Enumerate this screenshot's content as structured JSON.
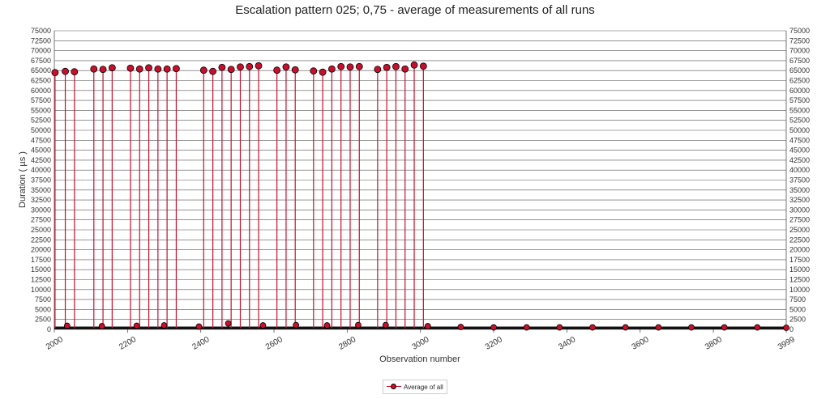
{
  "chart_data": {
    "type": "line",
    "title": "Escalation pattern 025; 0,75 - average of measurements of all runs",
    "xlabel": "Observation number",
    "ylabel": "Duration ( µs )",
    "xlim": [
      2000,
      3999
    ],
    "ylim": [
      0,
      75000
    ],
    "x_ticks": [
      2000,
      2200,
      2400,
      2600,
      2800,
      3000,
      3200,
      3400,
      3600,
      3800,
      3999
    ],
    "y_ticks": [
      0,
      2500,
      5000,
      7500,
      10000,
      12500,
      15000,
      17500,
      20000,
      22500,
      25000,
      27500,
      30000,
      32500,
      35000,
      37500,
      40000,
      42500,
      45000,
      47500,
      50000,
      52500,
      55000,
      57500,
      60000,
      62500,
      65000,
      67500,
      70000,
      72500,
      75000
    ],
    "grid": true,
    "legend_position": "bottom-center",
    "colors": {
      "series": "#c8102e",
      "marker_edge": "#000000",
      "grid": "#555555"
    },
    "baseline_value": 300,
    "series": [
      {
        "name": "Average of all",
        "spikes": [
          [
            2002,
            64500
          ],
          [
            2030,
            64800
          ],
          [
            2055,
            64700
          ],
          [
            2108,
            65400
          ],
          [
            2133,
            65300
          ],
          [
            2158,
            65700
          ],
          [
            2208,
            65600
          ],
          [
            2233,
            65400
          ],
          [
            2258,
            65700
          ],
          [
            2283,
            65400
          ],
          [
            2308,
            65400
          ],
          [
            2333,
            65500
          ],
          [
            2408,
            65100
          ],
          [
            2433,
            64800
          ],
          [
            2458,
            65800
          ],
          [
            2483,
            65300
          ],
          [
            2508,
            65900
          ],
          [
            2533,
            66000
          ],
          [
            2558,
            66200
          ],
          [
            2608,
            65100
          ],
          [
            2633,
            65900
          ],
          [
            2658,
            65200
          ],
          [
            2708,
            64900
          ],
          [
            2733,
            64600
          ],
          [
            2758,
            65400
          ],
          [
            2783,
            66000
          ],
          [
            2808,
            65900
          ],
          [
            2833,
            66000
          ],
          [
            2883,
            65300
          ],
          [
            2908,
            65800
          ],
          [
            2933,
            66000
          ],
          [
            2958,
            65400
          ],
          [
            2983,
            66400
          ],
          [
            3008,
            66100
          ]
        ],
        "bumps": [
          [
            2035,
            900
          ],
          [
            2130,
            800
          ],
          [
            2225,
            900
          ],
          [
            2300,
            1000
          ],
          [
            2395,
            700
          ],
          [
            2475,
            1500
          ],
          [
            2570,
            1000
          ],
          [
            2660,
            1100
          ],
          [
            2745,
            1000
          ],
          [
            2830,
            1100
          ],
          [
            2905,
            1100
          ],
          [
            3020,
            800
          ],
          [
            3110,
            600
          ],
          [
            3200,
            500
          ],
          [
            3290,
            500
          ],
          [
            3380,
            500
          ],
          [
            3470,
            500
          ],
          [
            3560,
            500
          ],
          [
            3650,
            500
          ],
          [
            3740,
            500
          ],
          [
            3830,
            500
          ],
          [
            3920,
            500
          ],
          [
            3999,
            400
          ]
        ]
      }
    ]
  }
}
